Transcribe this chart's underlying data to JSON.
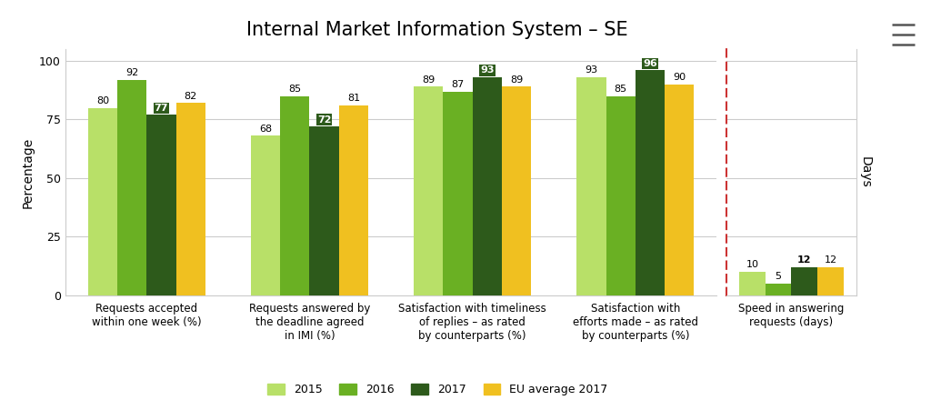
{
  "title": "Internal Market Information System – SE",
  "categories": [
    "Requests accepted\nwithin one week (%)",
    "Requests answered by\nthe deadline agreed\nin IMI (%)",
    "Satisfaction with timeliness\nof replies – as rated\nby counterparts (%)",
    "Satisfaction with\nefforts made – as rated\nby counterparts (%)"
  ],
  "category_days": "Speed in answering\nrequests (days)",
  "series": {
    "2015": [
      80,
      68,
      89,
      93
    ],
    "2016": [
      92,
      85,
      87,
      85
    ],
    "2017": [
      77,
      72,
      93,
      96
    ],
    "EU average 2017": [
      82,
      81,
      89,
      90
    ]
  },
  "series_days": {
    "2015": 10,
    "2016": 5,
    "2017": 12,
    "EU average 2017": 12
  },
  "colors": {
    "2015": "#b8e068",
    "2016": "#6ab023",
    "2017": "#2d5a1b",
    "EU average 2017": "#f0c020"
  },
  "ylabel_left": "Percentage",
  "ylabel_right": "Days",
  "ylim": [
    0,
    105
  ],
  "yticks": [
    0,
    25,
    50,
    75,
    100
  ],
  "background_color": "#ffffff",
  "grid_color": "#cccccc",
  "dashed_line_color": "#cc3333",
  "bar_width": 0.18,
  "legend_labels": [
    "2015",
    "2016",
    "2017",
    "EU average 2017"
  ],
  "title_fontsize": 15,
  "label_fontsize": 8.5,
  "value_fontsize": 8,
  "legend_fontsize": 9
}
